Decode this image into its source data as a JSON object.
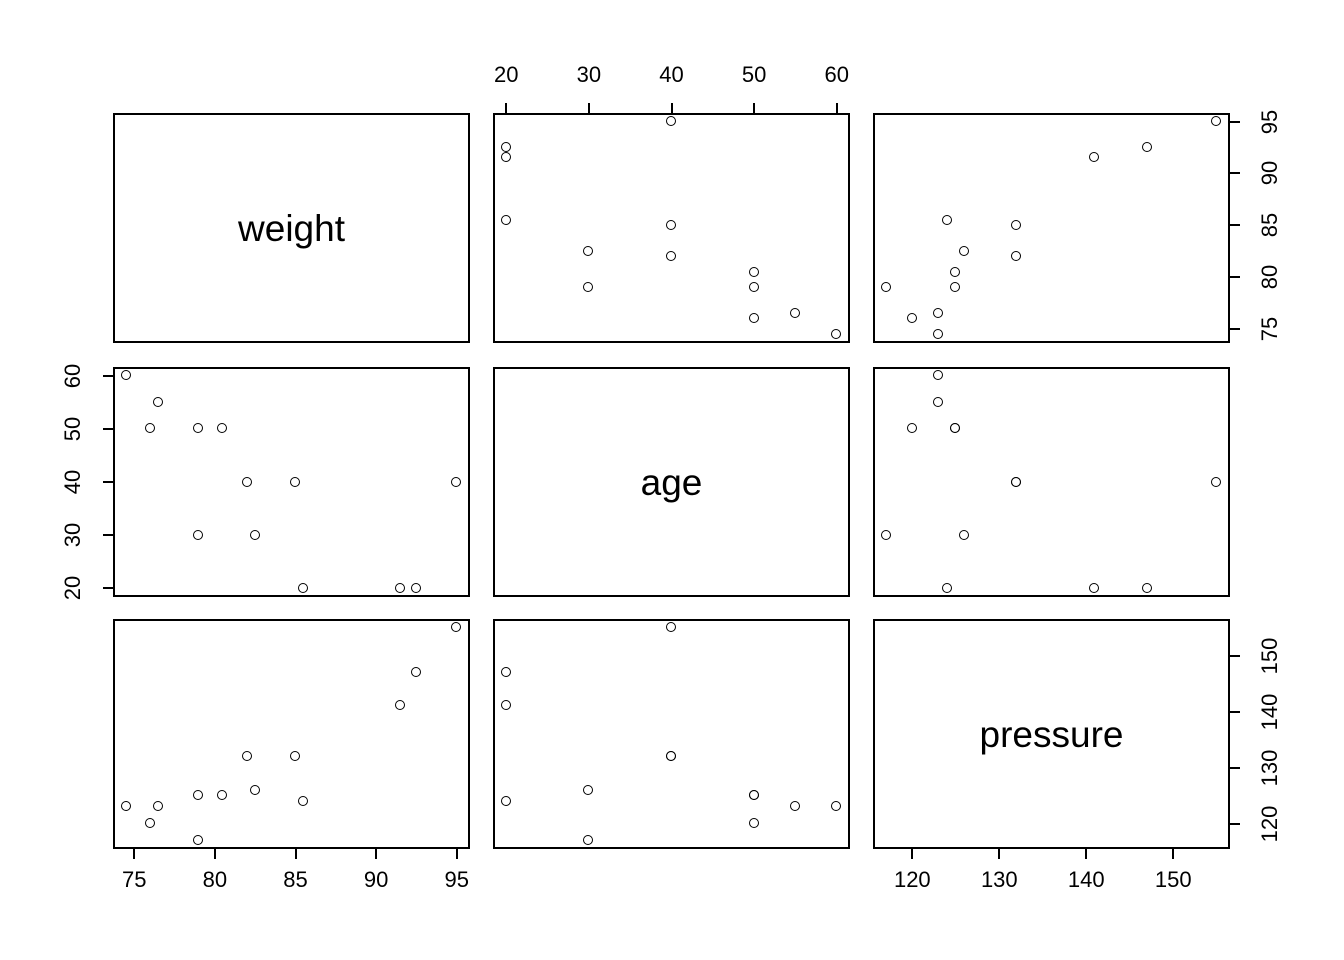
{
  "chart_data": {
    "type": "scatter",
    "subtype": "scatterplot-matrix",
    "title": "",
    "grid": false,
    "legend": null,
    "point_style": "open-circle",
    "colors": {
      "foreground": "#000000",
      "background": "#ffffff"
    },
    "variables": [
      "weight",
      "age",
      "pressure"
    ],
    "diagonal_labels": [
      "weight",
      "age",
      "pressure"
    ],
    "axes_def": {
      "weight": {
        "ticks": [
          75,
          80,
          85,
          90,
          95
        ],
        "range": [
          73.68,
          95.82
        ]
      },
      "age": {
        "ticks": [
          20,
          30,
          40,
          50,
          60
        ],
        "range": [
          18.4,
          61.6
        ]
      },
      "pressure": {
        "ticks": [
          120,
          130,
          140,
          150
        ],
        "range": [
          115.48,
          156.52
        ]
      }
    },
    "observations": [
      {
        "weight": 76,
        "age": 50,
        "pressure": 120
      },
      {
        "weight": 91.5,
        "age": 20,
        "pressure": 141
      },
      {
        "weight": 85.5,
        "age": 20,
        "pressure": 124
      },
      {
        "weight": 82.5,
        "age": 30,
        "pressure": 126
      },
      {
        "weight": 79,
        "age": 30,
        "pressure": 117
      },
      {
        "weight": 80.5,
        "age": 50,
        "pressure": 125
      },
      {
        "weight": 74.5,
        "age": 60,
        "pressure": 123
      },
      {
        "weight": 79,
        "age": 50,
        "pressure": 125
      },
      {
        "weight": 85,
        "age": 40,
        "pressure": 132
      },
      {
        "weight": 76.5,
        "age": 55,
        "pressure": 123
      },
      {
        "weight": 82,
        "age": 40,
        "pressure": 132
      },
      {
        "weight": 95,
        "age": 40,
        "pressure": 155
      },
      {
        "weight": 92.5,
        "age": 20,
        "pressure": 147
      }
    ],
    "panels": [
      {
        "row": 0,
        "col": 0,
        "type": "label",
        "label_index": 0
      },
      {
        "row": 0,
        "col": 1,
        "type": "scatter",
        "x": "age",
        "y": "weight"
      },
      {
        "row": 0,
        "col": 2,
        "type": "scatter",
        "x": "pressure",
        "y": "weight"
      },
      {
        "row": 1,
        "col": 0,
        "type": "scatter",
        "x": "weight",
        "y": "age"
      },
      {
        "row": 1,
        "col": 1,
        "type": "label",
        "label_index": 1
      },
      {
        "row": 1,
        "col": 2,
        "type": "scatter",
        "x": "pressure",
        "y": "age"
      },
      {
        "row": 2,
        "col": 0,
        "type": "scatter",
        "x": "weight",
        "y": "pressure"
      },
      {
        "row": 2,
        "col": 1,
        "type": "scatter",
        "x": "age",
        "y": "pressure"
      },
      {
        "row": 2,
        "col": 2,
        "type": "label",
        "label_index": 2
      }
    ],
    "axis_placements": [
      {
        "row": 0,
        "col": 1,
        "side": "top",
        "variable": "age"
      },
      {
        "row": 0,
        "col": 2,
        "side": "right",
        "variable": "weight"
      },
      {
        "row": 1,
        "col": 0,
        "side": "left",
        "variable": "age"
      },
      {
        "row": 2,
        "col": 0,
        "side": "bottom",
        "variable": "weight"
      },
      {
        "row": 2,
        "col": 2,
        "side": "bottom",
        "variable": "pressure"
      },
      {
        "row": 2,
        "col": 2,
        "side": "right",
        "variable": "pressure"
      }
    ]
  }
}
